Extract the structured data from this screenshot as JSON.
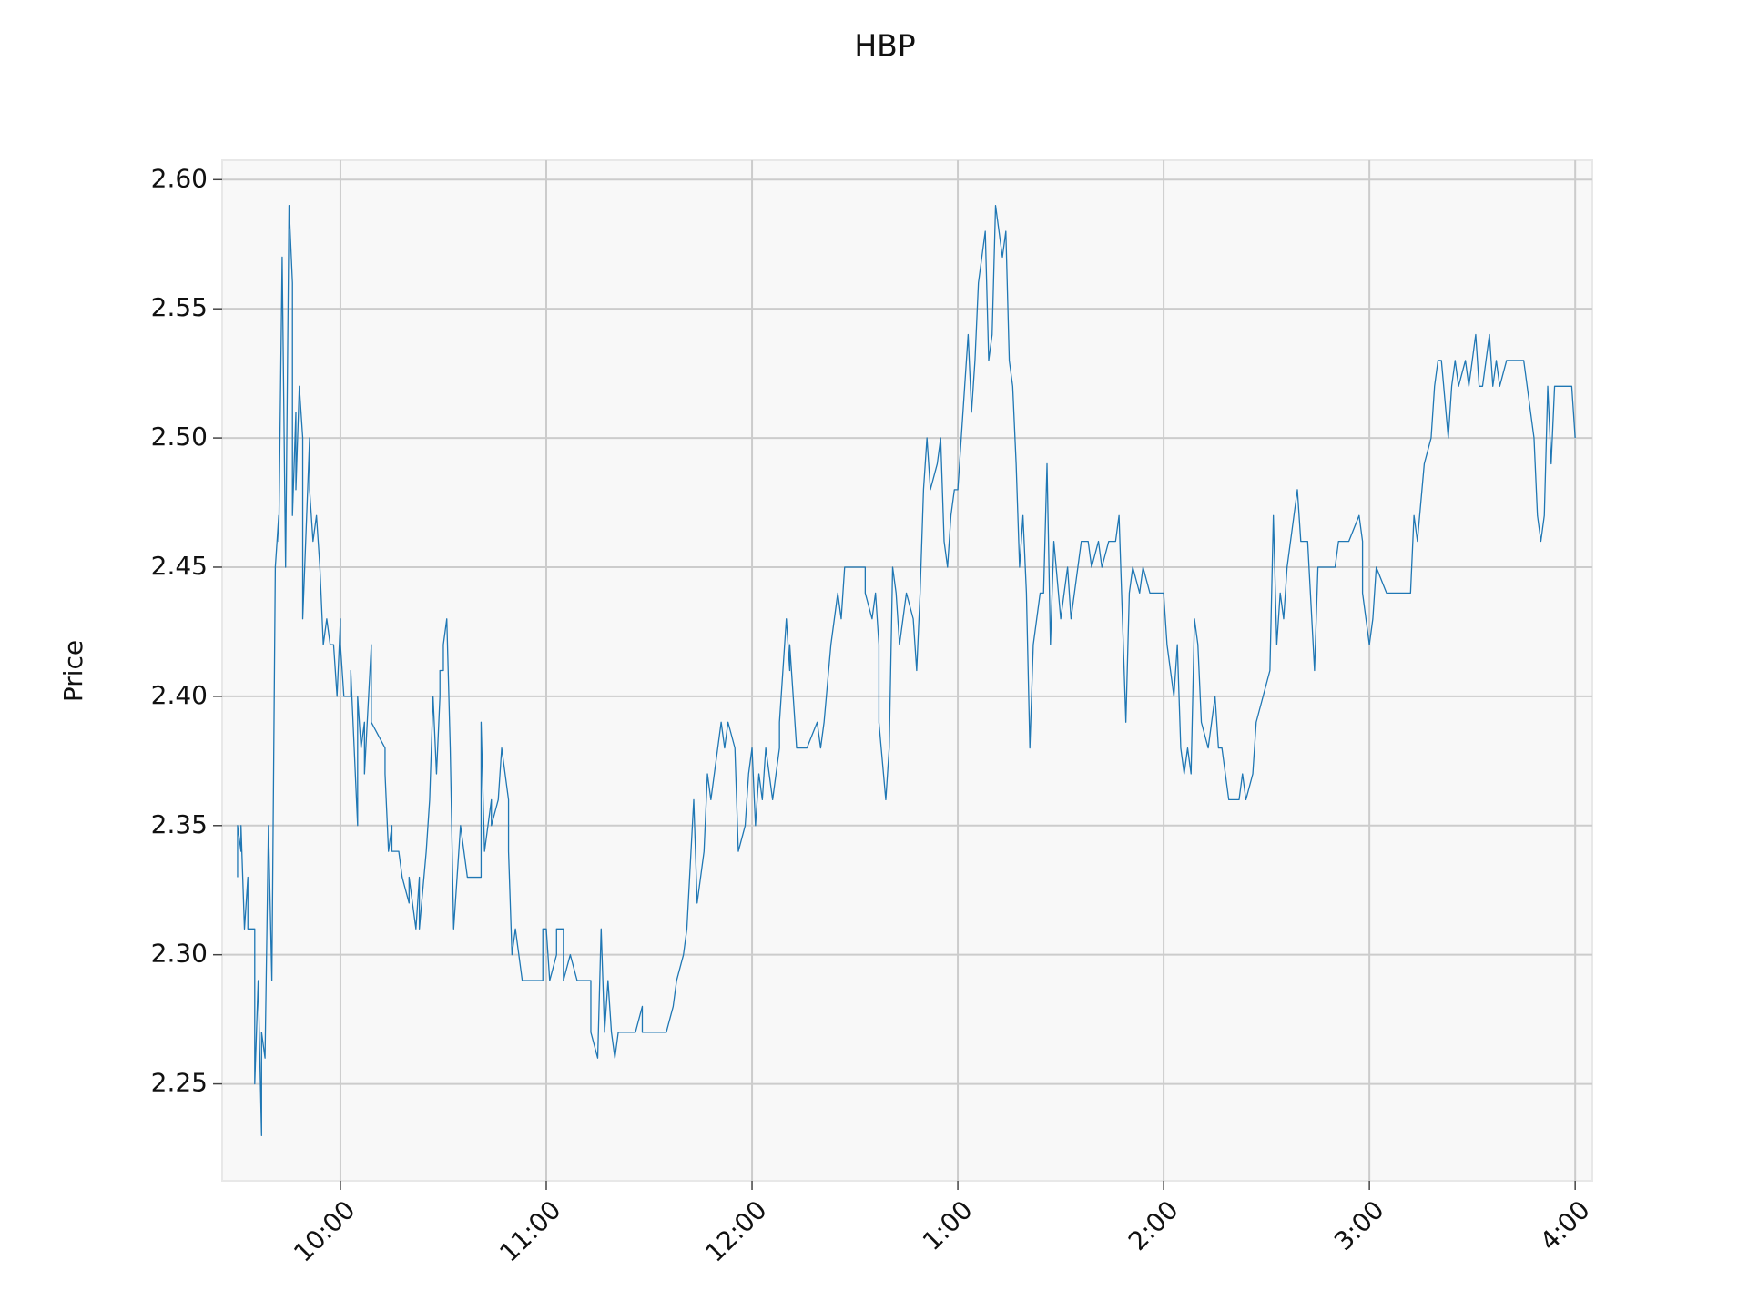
{
  "chart_data": {
    "type": "line",
    "title": "HBP",
    "y_label": "Price",
    "color": "#1f77b4",
    "grid": true,
    "xlim": [
      565.5,
      965
    ],
    "ylim": [
      2.2125,
      2.6075
    ],
    "xticks": [
      {
        "value": 600,
        "label": "10:00"
      },
      {
        "value": 660,
        "label": "11:00"
      },
      {
        "value": 720,
        "label": "12:00"
      },
      {
        "value": 780,
        "label": "1:00"
      },
      {
        "value": 840,
        "label": "2:00"
      },
      {
        "value": 900,
        "label": "3:00"
      },
      {
        "value": 960,
        "label": "4:00"
      }
    ],
    "yticks": [
      2.25,
      {
        "value": 2.3,
        "label": "2.30"
      },
      2.35,
      {
        "value": 2.4,
        "label": "2.40"
      },
      2.45,
      {
        "value": 2.5,
        "label": "2.50"
      },
      2.55,
      {
        "value": 2.6,
        "label": "2.60"
      }
    ],
    "x": [
      570,
      570,
      571,
      571,
      572,
      573,
      573,
      575,
      575,
      576,
      577,
      577,
      578,
      579,
      580,
      581,
      582,
      582,
      583,
      584,
      585,
      586,
      586,
      587,
      587,
      588,
      589,
      589,
      591,
      591,
      592,
      593,
      594,
      595,
      596,
      597,
      598,
      599,
      600,
      600,
      601,
      603,
      603,
      605,
      605,
      606,
      607,
      607,
      609,
      609,
      613,
      613,
      614,
      615,
      615,
      617,
      618,
      620,
      620,
      622,
      623,
      623,
      625,
      626,
      627,
      628,
      629,
      629,
      630,
      630,
      631,
      632,
      633,
      634,
      635,
      636,
      637,
      641,
      641,
      642,
      644,
      644,
      646,
      647,
      649,
      649,
      650,
      651,
      653,
      659,
      659,
      660,
      661,
      663,
      663,
      665,
      665,
      667,
      669,
      673,
      673,
      675,
      676,
      677,
      678,
      679,
      680,
      681,
      686,
      688,
      688,
      695,
      697,
      698,
      700,
      701,
      703,
      704,
      706,
      707,
      708,
      709,
      711,
      712,
      713,
      715,
      716,
      718,
      719,
      720,
      721,
      722,
      723,
      724,
      725,
      726,
      727,
      728,
      728,
      730,
      731,
      731,
      733,
      736,
      739,
      740,
      741,
      743,
      744,
      745,
      746,
      747,
      750,
      753,
      753,
      755,
      756,
      757,
      757,
      759,
      760,
      761,
      762,
      763,
      764,
      765,
      767,
      768,
      769,
      770,
      771,
      772,
      774,
      775,
      776,
      777,
      778,
      779,
      780,
      781,
      783,
      784,
      785,
      786,
      788,
      789,
      790,
      791,
      793,
      794,
      795,
      796,
      797,
      798,
      799,
      800,
      801,
      802,
      803,
      804,
      805,
      806,
      807,
      808,
      810,
      811,
      812,
      813,
      815,
      816,
      818,
      819,
      821,
      822,
      824,
      826,
      827,
      829,
      830,
      831,
      833,
      834,
      836,
      840,
      841,
      843,
      844,
      845,
      846,
      847,
      848,
      849,
      850,
      851,
      853,
      855,
      856,
      857,
      859,
      862,
      863,
      864,
      866,
      867,
      869,
      871,
      872,
      873,
      874,
      875,
      876,
      877,
      879,
      880,
      882,
      884,
      885,
      886,
      890,
      891,
      894,
      897,
      898,
      898,
      900,
      901,
      902,
      905,
      908,
      912,
      913,
      914,
      916,
      918,
      919,
      920,
      921,
      923,
      924,
      925,
      926,
      928,
      929,
      931,
      932,
      933,
      934,
      935,
      936,
      937,
      938,
      940,
      943,
      945,
      946,
      948,
      949,
      950,
      951,
      952,
      953,
      954,
      956,
      959,
      960
    ],
    "values": [
      2.33,
      2.35,
      2.34,
      2.35,
      2.31,
      2.33,
      2.31,
      2.31,
      2.25,
      2.29,
      2.23,
      2.27,
      2.26,
      2.35,
      2.29,
      2.45,
      2.47,
      2.46,
      2.57,
      2.45,
      2.59,
      2.56,
      2.47,
      2.51,
      2.48,
      2.52,
      2.5,
      2.43,
      2.5,
      2.48,
      2.46,
      2.47,
      2.45,
      2.42,
      2.43,
      2.42,
      2.42,
      2.4,
      2.43,
      2.42,
      2.4,
      2.4,
      2.41,
      2.35,
      2.4,
      2.38,
      2.39,
      2.37,
      2.42,
      2.39,
      2.38,
      2.37,
      2.34,
      2.35,
      2.34,
      2.34,
      2.33,
      2.32,
      2.33,
      2.31,
      2.33,
      2.31,
      2.34,
      2.36,
      2.4,
      2.37,
      2.4,
      2.41,
      2.41,
      2.42,
      2.43,
      2.38,
      2.31,
      2.33,
      2.35,
      2.34,
      2.33,
      2.33,
      2.39,
      2.34,
      2.36,
      2.35,
      2.36,
      2.38,
      2.36,
      2.34,
      2.3,
      2.31,
      2.29,
      2.29,
      2.31,
      2.31,
      2.29,
      2.3,
      2.31,
      2.31,
      2.29,
      2.3,
      2.29,
      2.29,
      2.27,
      2.26,
      2.31,
      2.27,
      2.29,
      2.27,
      2.26,
      2.27,
      2.27,
      2.28,
      2.27,
      2.27,
      2.28,
      2.29,
      2.3,
      2.31,
      2.36,
      2.32,
      2.34,
      2.37,
      2.36,
      2.37,
      2.39,
      2.38,
      2.39,
      2.38,
      2.34,
      2.35,
      2.37,
      2.38,
      2.35,
      2.37,
      2.36,
      2.38,
      2.37,
      2.36,
      2.37,
      2.38,
      2.39,
      2.43,
      2.41,
      2.42,
      2.38,
      2.38,
      2.39,
      2.38,
      2.39,
      2.42,
      2.43,
      2.44,
      2.43,
      2.45,
      2.45,
      2.45,
      2.44,
      2.43,
      2.44,
      2.42,
      2.39,
      2.36,
      2.38,
      2.45,
      2.44,
      2.42,
      2.43,
      2.44,
      2.43,
      2.41,
      2.44,
      2.48,
      2.5,
      2.48,
      2.49,
      2.5,
      2.46,
      2.45,
      2.47,
      2.48,
      2.48,
      2.5,
      2.54,
      2.51,
      2.53,
      2.56,
      2.58,
      2.53,
      2.54,
      2.59,
      2.57,
      2.58,
      2.53,
      2.52,
      2.49,
      2.45,
      2.47,
      2.44,
      2.38,
      2.42,
      2.43,
      2.44,
      2.44,
      2.49,
      2.42,
      2.46,
      2.43,
      2.44,
      2.45,
      2.43,
      2.45,
      2.46,
      2.46,
      2.45,
      2.46,
      2.45,
      2.46,
      2.46,
      2.47,
      2.39,
      2.44,
      2.45,
      2.44,
      2.45,
      2.44,
      2.44,
      2.42,
      2.4,
      2.42,
      2.38,
      2.37,
      2.38,
      2.37,
      2.43,
      2.42,
      2.39,
      2.38,
      2.4,
      2.38,
      2.38,
      2.36,
      2.36,
      2.37,
      2.36,
      2.37,
      2.39,
      2.4,
      2.41,
      2.47,
      2.42,
      2.44,
      2.43,
      2.45,
      2.46,
      2.48,
      2.46,
      2.46,
      2.41,
      2.45,
      2.45,
      2.45,
      2.46,
      2.46,
      2.47,
      2.46,
      2.44,
      2.42,
      2.43,
      2.45,
      2.44,
      2.44,
      2.44,
      2.47,
      2.46,
      2.49,
      2.5,
      2.52,
      2.53,
      2.53,
      2.5,
      2.52,
      2.53,
      2.52,
      2.53,
      2.52,
      2.54,
      2.52,
      2.52,
      2.53,
      2.54,
      2.52,
      2.53,
      2.52,
      2.53,
      2.53,
      2.53,
      2.52,
      2.5,
      2.47,
      2.46,
      2.47,
      2.52,
      2.49,
      2.52,
      2.52,
      2.52,
      2.5
    ]
  }
}
